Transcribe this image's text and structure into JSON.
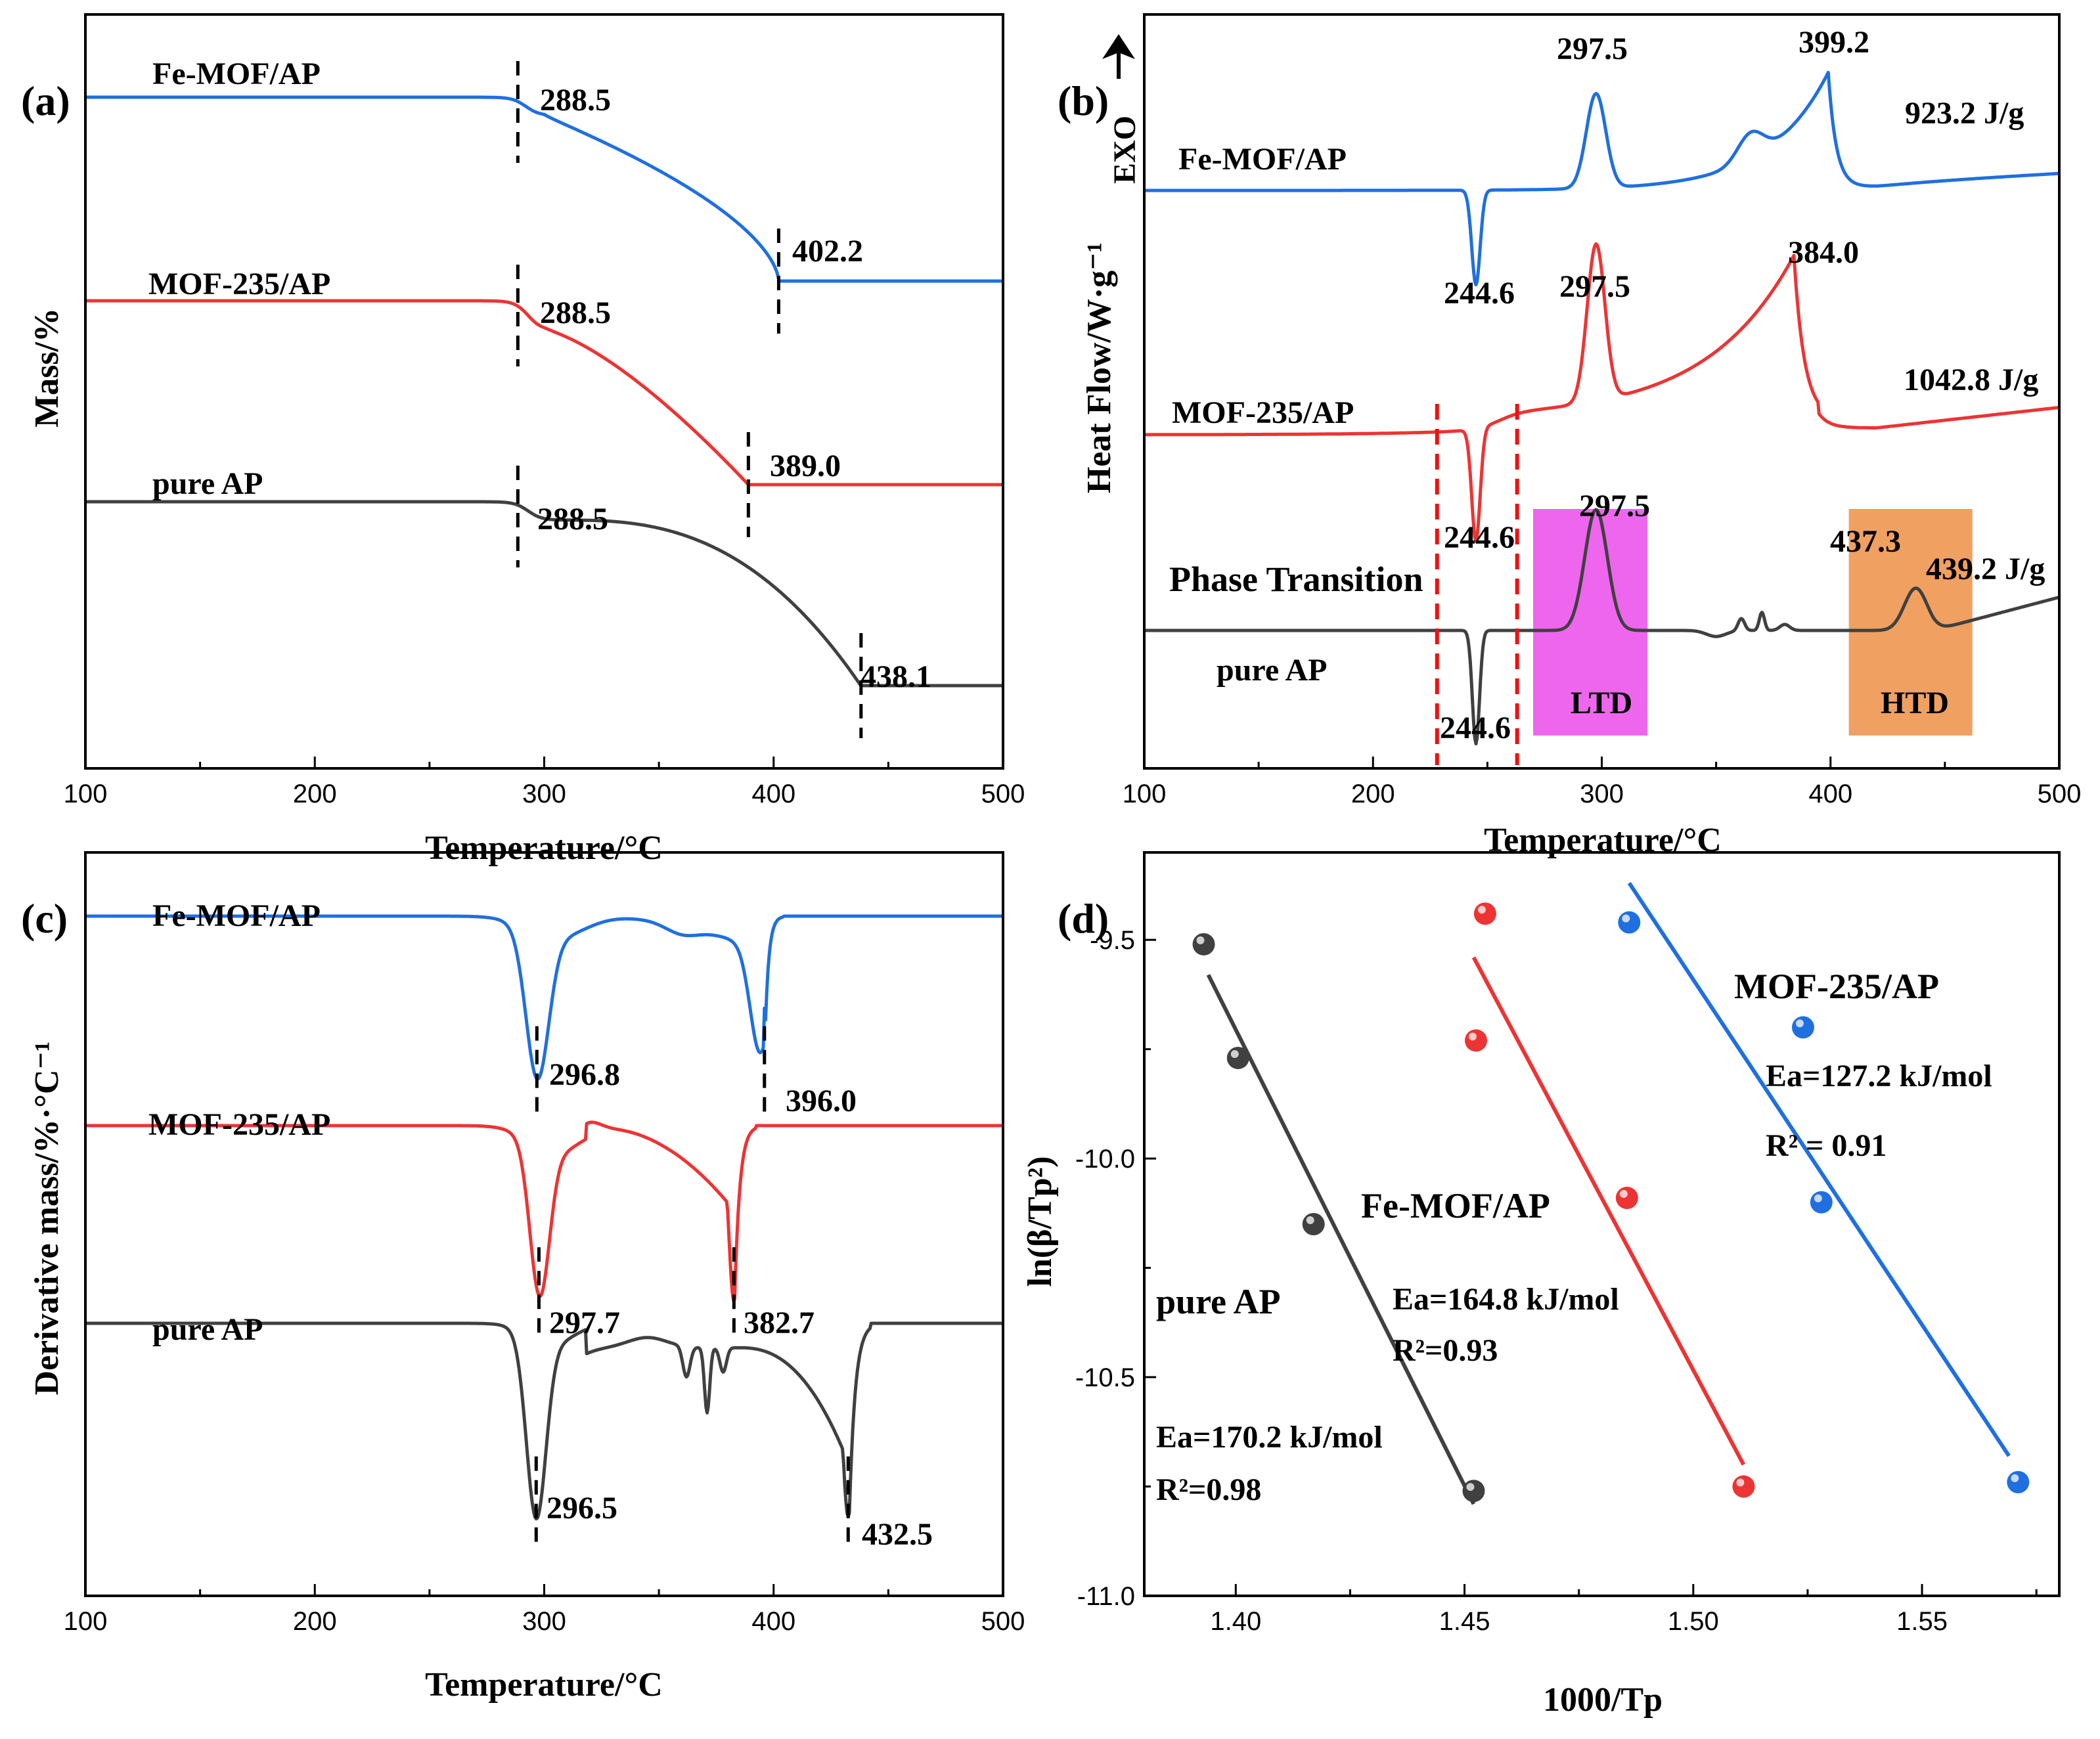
{
  "colors": {
    "fe": "#1f6fe0",
    "mof": "#ee3333",
    "pure": "#404040",
    "ltd_fill": "#ee66ee",
    "htd_fill": "#f0a060",
    "pt_line": "#ee1111"
  },
  "chart_data": [
    {
      "panel": "(a)",
      "type": "line",
      "xlabel": "Temperature/°C",
      "ylabel": "Mass/%",
      "xlim": [
        100,
        500
      ],
      "xticks": [
        "100",
        "200",
        "300",
        "400",
        "500"
      ],
      "series": [
        {
          "name": "Fe-MOF/AP",
          "color_key": "fe",
          "onset": "288.5",
          "end": "402.2",
          "onset_t": 288.5,
          "end_t": 402.2
        },
        {
          "name": "MOF-235/AP",
          "color_key": "mof",
          "onset": "288.5",
          "end": "389.0",
          "onset_t": 288.5,
          "end_t": 389.0
        },
        {
          "name": "pure AP",
          "color_key": "pure",
          "onset": "288.5",
          "end": "438.1",
          "onset_t": 288.5,
          "end_t": 438.1
        }
      ]
    },
    {
      "panel": "(b)",
      "type": "line",
      "xlabel": "Temperature/°C",
      "ylabel": "Heat Flow/W·g⁻¹",
      "exo_label": "EXO",
      "xlim": [
        100,
        500
      ],
      "xticks": [
        "100",
        "200",
        "300",
        "400",
        "500"
      ],
      "phase_transition_label": "Phase Transition",
      "regions": [
        {
          "name": "LTD",
          "x0": 270,
          "x1": 320
        },
        {
          "name": "HTD",
          "x0": 408,
          "x1": 462
        }
      ],
      "phase_lines": [
        228,
        263
      ],
      "series": [
        {
          "name": "Fe-MOF/AP",
          "color_key": "fe",
          "endo_peak": "244.6",
          "peaks": [
            "297.5",
            "399.2"
          ],
          "heat": "923.2 J/g"
        },
        {
          "name": "MOF-235/AP",
          "color_key": "mof",
          "endo_peak": "244.6",
          "peaks": [
            "297.5",
            "384.0"
          ],
          "heat": "1042.8 J/g"
        },
        {
          "name": "pure AP",
          "color_key": "pure",
          "endo_peak": "244.6",
          "peaks": [
            "297.5",
            "437.3"
          ],
          "heat": "439.2 J/g"
        }
      ]
    },
    {
      "panel": "(c)",
      "type": "line",
      "xlabel": "Temperature/°C",
      "ylabel": "Derivative mass/%·°C⁻¹",
      "xlim": [
        100,
        500
      ],
      "xticks": [
        "100",
        "200",
        "300",
        "400",
        "500"
      ],
      "series": [
        {
          "name": "Fe-MOF/AP",
          "color_key": "fe",
          "peaks": [
            "296.8",
            "396.0"
          ],
          "peak_t": [
            296.8,
            396.0
          ]
        },
        {
          "name": "MOF-235/AP",
          "color_key": "mof",
          "peaks": [
            "297.7",
            "382.7"
          ],
          "peak_t": [
            297.7,
            382.7
          ]
        },
        {
          "name": "pure AP",
          "color_key": "pure",
          "peaks": [
            "296.5",
            "432.5"
          ],
          "peak_t": [
            296.5,
            432.5
          ]
        }
      ]
    },
    {
      "panel": "(d)",
      "type": "scatter",
      "xlabel": "1000/Tp",
      "ylabel": "ln(β/Tp²)",
      "xlim": [
        1.38,
        1.58
      ],
      "ylim": [
        -11.0,
        -9.3
      ],
      "xticks": [
        "1.40",
        "1.45",
        "1.50",
        "1.55"
      ],
      "yticks": [
        "-9.5",
        "-10.0",
        "-10.5",
        "-11.0"
      ],
      "series": [
        {
          "name": "pure AP",
          "color_key": "pure",
          "ea": "Ea=170.2 kJ/mol",
          "r2": "R²=0.98",
          "x": [
            1.393,
            1.4005,
            1.417,
            1.452
          ],
          "y": [
            -9.51,
            -9.77,
            -10.15,
            -10.76
          ],
          "fit": [
            [
              1.394,
              -9.58
            ],
            [
              1.452,
              -10.79
            ]
          ]
        },
        {
          "name": "Fe-MOF/AP",
          "color_key": "mof",
          "ea": "Ea=164.8 kJ/mol",
          "r2": "R²=0.93",
          "x": [
            1.4545,
            1.4525,
            1.4855,
            1.511
          ],
          "y": [
            -9.44,
            -9.73,
            -10.09,
            -10.75
          ],
          "fit": [
            [
              1.452,
              -9.54
            ],
            [
              1.511,
              -10.7
            ]
          ]
        },
        {
          "name": "MOF-235/AP",
          "color_key": "fe",
          "ea": "Ea=127.2 kJ/mol",
          "r2": "R² = 0.91",
          "x": [
            1.486,
            1.524,
            1.528,
            1.571
          ],
          "y": [
            -9.46,
            -9.7,
            -10.1,
            -10.74
          ],
          "fit": [
            [
              1.486,
              -9.37
            ],
            [
              1.569,
              -10.68
            ]
          ]
        }
      ]
    }
  ]
}
